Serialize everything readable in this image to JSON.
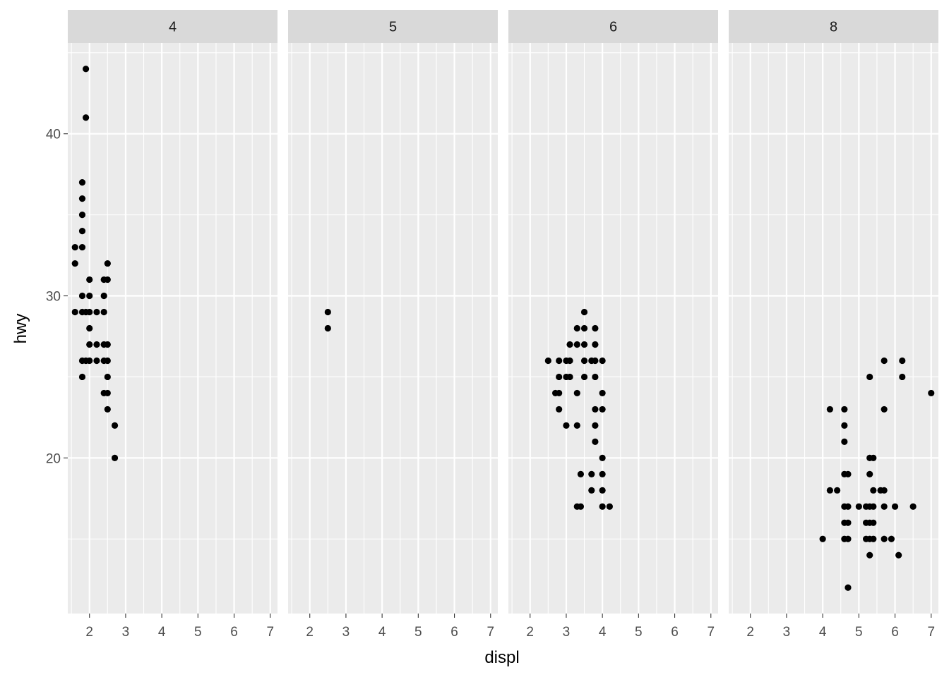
{
  "chart_data": {
    "type": "scatter",
    "facet_by": "cyl",
    "xlabel": "displ",
    "ylabel": "hwy",
    "xlim": [
      1.4,
      7.2
    ],
    "ylim": [
      10.4,
      45.6
    ],
    "x_ticks": [
      2,
      3,
      4,
      5,
      6,
      7
    ],
    "y_ticks": [
      20,
      30,
      40
    ],
    "grid": true,
    "panels": [
      {
        "label": "4",
        "points": [
          [
            1.6,
            29
          ],
          [
            1.6,
            32
          ],
          [
            1.6,
            33
          ],
          [
            1.8,
            37
          ],
          [
            1.8,
            36
          ],
          [
            1.8,
            35
          ],
          [
            1.8,
            34
          ],
          [
            1.8,
            33
          ],
          [
            1.8,
            30
          ],
          [
            1.8,
            29
          ],
          [
            1.8,
            26
          ],
          [
            1.8,
            25
          ],
          [
            1.9,
            44
          ],
          [
            1.9,
            41
          ],
          [
            1.9,
            29
          ],
          [
            1.9,
            26
          ],
          [
            2.0,
            31
          ],
          [
            2.0,
            30
          ],
          [
            2.0,
            29
          ],
          [
            2.0,
            28
          ],
          [
            2.0,
            27
          ],
          [
            2.0,
            26
          ],
          [
            2.2,
            29
          ],
          [
            2.2,
            27
          ],
          [
            2.2,
            26
          ],
          [
            2.4,
            31
          ],
          [
            2.4,
            30
          ],
          [
            2.4,
            29
          ],
          [
            2.4,
            27
          ],
          [
            2.4,
            26
          ],
          [
            2.4,
            24
          ],
          [
            2.5,
            32
          ],
          [
            2.5,
            31
          ],
          [
            2.5,
            27
          ],
          [
            2.5,
            26
          ],
          [
            2.5,
            25
          ],
          [
            2.5,
            24
          ],
          [
            2.5,
            23
          ],
          [
            2.7,
            22
          ],
          [
            2.7,
            20
          ]
        ]
      },
      {
        "label": "5",
        "points": [
          [
            2.5,
            29
          ],
          [
            2.5,
            28
          ]
        ]
      },
      {
        "label": "6",
        "points": [
          [
            2.5,
            26
          ],
          [
            2.7,
            24
          ],
          [
            2.8,
            26
          ],
          [
            2.8,
            25
          ],
          [
            2.8,
            24
          ],
          [
            2.8,
            23
          ],
          [
            3.0,
            26
          ],
          [
            3.0,
            25
          ],
          [
            3.0,
            22
          ],
          [
            3.1,
            27
          ],
          [
            3.1,
            26
          ],
          [
            3.1,
            25
          ],
          [
            3.3,
            28
          ],
          [
            3.3,
            27
          ],
          [
            3.3,
            24
          ],
          [
            3.3,
            22
          ],
          [
            3.3,
            17
          ],
          [
            3.4,
            19
          ],
          [
            3.4,
            17
          ],
          [
            3.5,
            29
          ],
          [
            3.5,
            28
          ],
          [
            3.5,
            27
          ],
          [
            3.5,
            26
          ],
          [
            3.5,
            25
          ],
          [
            3.7,
            26
          ],
          [
            3.7,
            19
          ],
          [
            3.7,
            18
          ],
          [
            3.8,
            28
          ],
          [
            3.8,
            27
          ],
          [
            3.8,
            26
          ],
          [
            3.8,
            25
          ],
          [
            3.8,
            23
          ],
          [
            3.8,
            22
          ],
          [
            3.8,
            21
          ],
          [
            4.0,
            26
          ],
          [
            4.0,
            24
          ],
          [
            4.0,
            23
          ],
          [
            4.0,
            20
          ],
          [
            4.0,
            19
          ],
          [
            4.0,
            18
          ],
          [
            4.0,
            17
          ],
          [
            4.2,
            17
          ]
        ]
      },
      {
        "label": "8",
        "points": [
          [
            4.0,
            15
          ],
          [
            4.2,
            23
          ],
          [
            4.2,
            18
          ],
          [
            4.4,
            18
          ],
          [
            4.6,
            23
          ],
          [
            4.6,
            22
          ],
          [
            4.6,
            21
          ],
          [
            4.6,
            19
          ],
          [
            4.6,
            17
          ],
          [
            4.6,
            16
          ],
          [
            4.6,
            15
          ],
          [
            4.7,
            19
          ],
          [
            4.7,
            17
          ],
          [
            4.7,
            16
          ],
          [
            4.7,
            15
          ],
          [
            4.7,
            12
          ],
          [
            5.0,
            17
          ],
          [
            5.2,
            17
          ],
          [
            5.2,
            16
          ],
          [
            5.2,
            15
          ],
          [
            5.3,
            25
          ],
          [
            5.3,
            20
          ],
          [
            5.3,
            19
          ],
          [
            5.3,
            17
          ],
          [
            5.3,
            16
          ],
          [
            5.3,
            15
          ],
          [
            5.3,
            14
          ],
          [
            5.4,
            20
          ],
          [
            5.4,
            18
          ],
          [
            5.4,
            17
          ],
          [
            5.4,
            16
          ],
          [
            5.4,
            15
          ],
          [
            5.6,
            18
          ],
          [
            5.7,
            26
          ],
          [
            5.7,
            23
          ],
          [
            5.7,
            18
          ],
          [
            5.7,
            17
          ],
          [
            5.7,
            15
          ],
          [
            5.9,
            15
          ],
          [
            6.0,
            17
          ],
          [
            6.1,
            14
          ],
          [
            6.2,
            26
          ],
          [
            6.2,
            25
          ],
          [
            6.5,
            17
          ],
          [
            7.0,
            24
          ]
        ]
      }
    ]
  }
}
